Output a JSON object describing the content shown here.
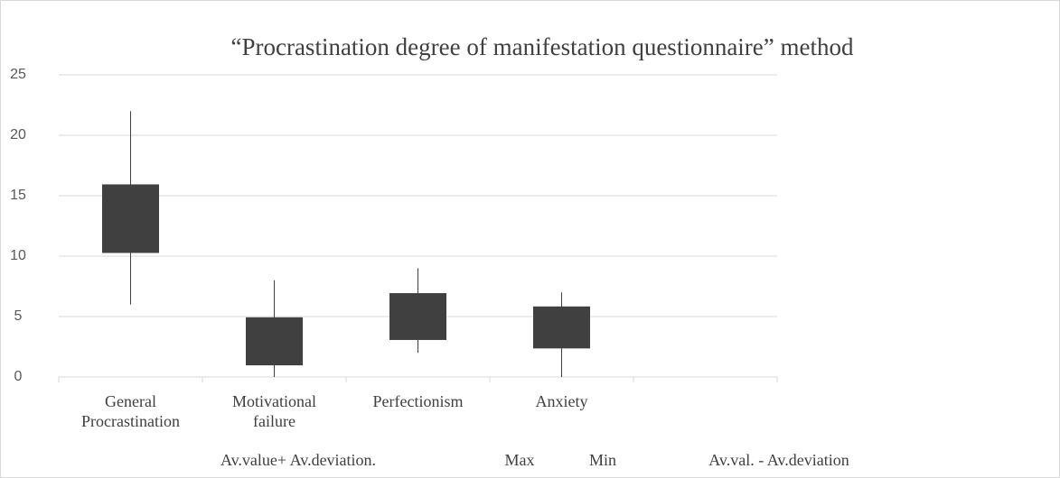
{
  "chart_data": {
    "type": "candlestick",
    "title": "“Procrastination degree of manifestation questionnaire” method",
    "categories": [
      "General Procrastination",
      "Motivational failure",
      "Perfectionism",
      "Anxiety",
      null
    ],
    "series": [
      {
        "name": "Av.value+ Av.deviation.",
        "color": "#404040",
        "values": [
          15.9,
          4.9,
          6.9,
          5.8,
          null
        ]
      },
      {
        "name": "Max",
        "color": "#404040",
        "values": [
          22,
          8,
          9,
          7,
          null
        ]
      },
      {
        "name": "Min",
        "color": "#404040",
        "values": [
          6,
          0,
          2,
          0,
          null
        ]
      },
      {
        "name": "Av.val. - Av.deviation",
        "color": "#404040",
        "values": [
          10.3,
          1.0,
          3.1,
          2.4,
          null
        ]
      }
    ],
    "ylim": [
      0,
      25
    ],
    "yticks": [
      0,
      5,
      10,
      15,
      20,
      25
    ],
    "grid": true,
    "legend": "bottom"
  }
}
